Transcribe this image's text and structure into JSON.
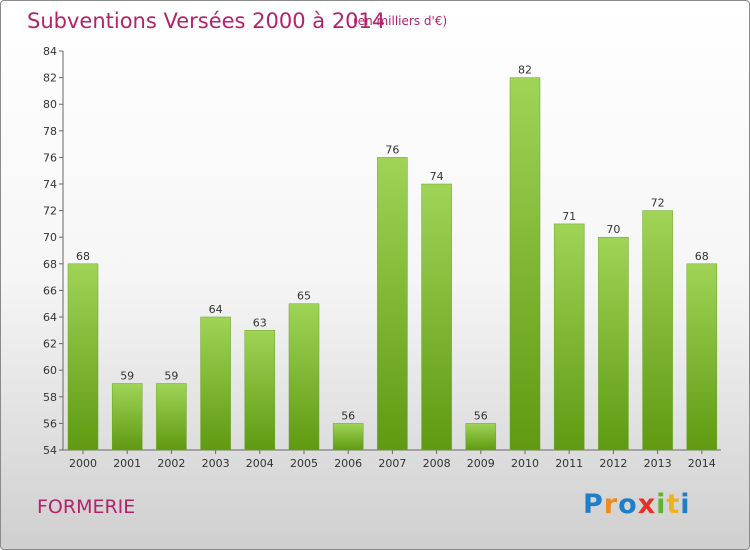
{
  "title": "Subventions Versées 2000 à 2014",
  "subtitle": "(en milliers d'€)",
  "commune": "FORMERIE",
  "logo": {
    "letters": [
      "P",
      "r",
      "o",
      "x",
      "i",
      "t",
      "i"
    ],
    "colors": [
      "#1e7fc8",
      "#f08a1c",
      "#1e7fc8",
      "#e4322b",
      "#63b22e",
      "#f0b21c",
      "#1e7fc8"
    ]
  },
  "colors": {
    "bar_light": "#9fd456",
    "bar_dark": "#5f9a12",
    "title": "#b5226a"
  },
  "chart_data": {
    "type": "bar",
    "title": "Subventions Versées 2000 à 2014",
    "subtitle": "(en milliers d'€)",
    "categories": [
      "2000",
      "2001",
      "2002",
      "2003",
      "2004",
      "2005",
      "2006",
      "2007",
      "2008",
      "2009",
      "2010",
      "2011",
      "2012",
      "2013",
      "2014"
    ],
    "values": [
      68,
      59,
      59,
      64,
      63,
      65,
      56,
      76,
      74,
      56,
      82,
      71,
      70,
      72,
      68
    ],
    "ylim": [
      54,
      84
    ],
    "yticks": [
      54,
      56,
      58,
      60,
      62,
      64,
      66,
      68,
      70,
      72,
      74,
      76,
      78,
      80,
      82,
      84
    ],
    "grid": false,
    "data_labels": true
  }
}
